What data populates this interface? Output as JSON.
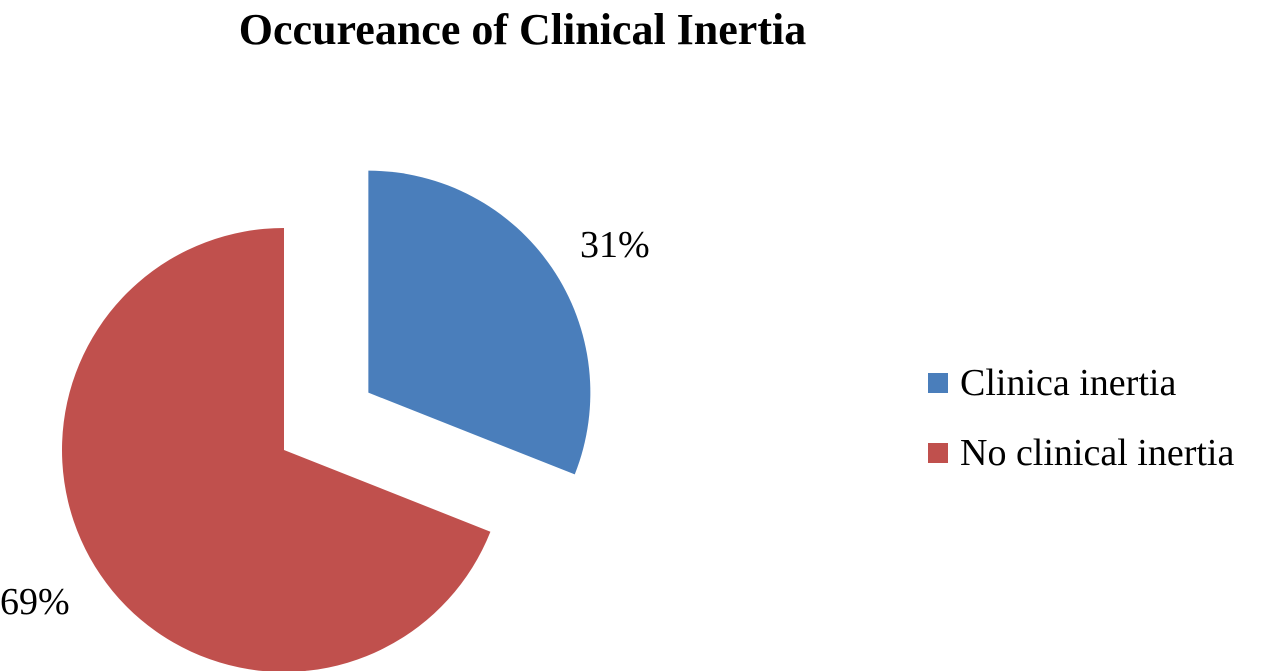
{
  "chart_data": {
    "type": "pie",
    "title": "Occureance of Clinical Inertia",
    "slices": [
      {
        "label": "Clinica inertia",
        "value": 31,
        "display": "31%",
        "color": "#4a7ebb",
        "exploded": true
      },
      {
        "label": "No clinical inertia",
        "value": 69,
        "display": "69%",
        "color": "#c0504d",
        "exploded": false
      }
    ],
    "legend_placement": "right"
  }
}
